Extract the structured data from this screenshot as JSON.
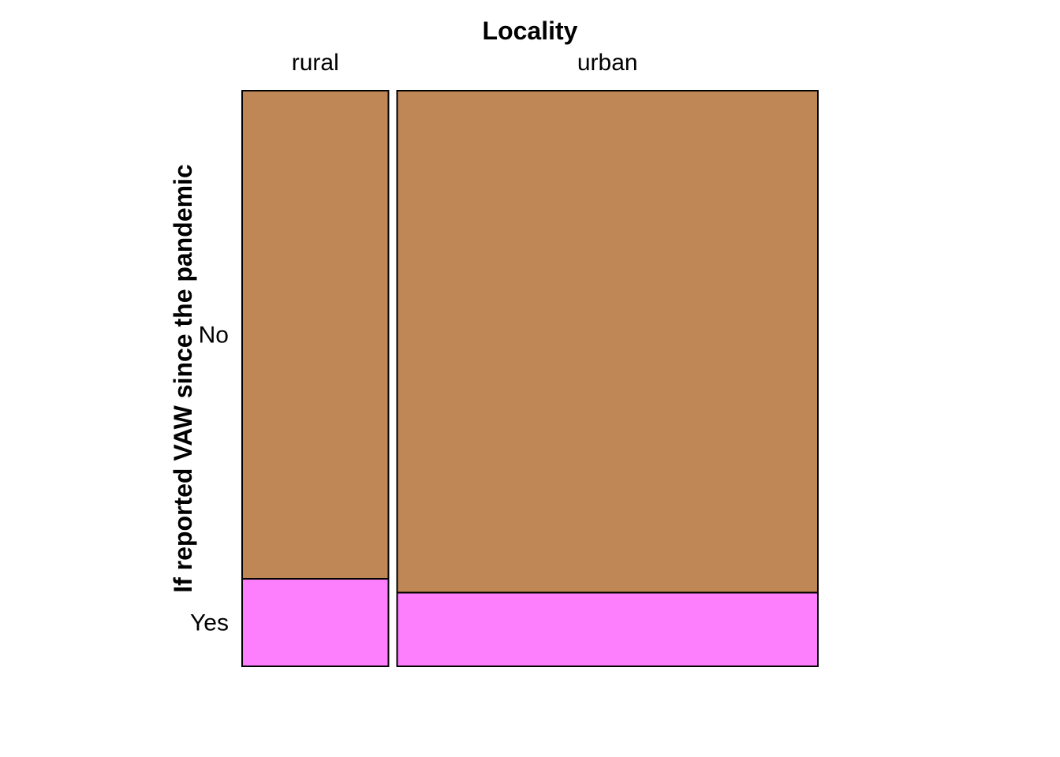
{
  "chart_data": {
    "type": "mosaic",
    "xlabel": "Locality",
    "ylabel": "If reported VAW since the pandemic",
    "x_categories": [
      "rural",
      "urban"
    ],
    "y_categories": [
      "No",
      "Yes"
    ],
    "column_share": [
      0.258,
      0.742
    ],
    "conditional_proportions": {
      "rural": {
        "No": 0.848,
        "Yes": 0.152
      },
      "urban": {
        "No": 0.872,
        "Yes": 0.128
      }
    },
    "colors": {
      "No": "#BF8755",
      "Yes": "#FD7FFD"
    },
    "grid": false,
    "legend": "none"
  }
}
